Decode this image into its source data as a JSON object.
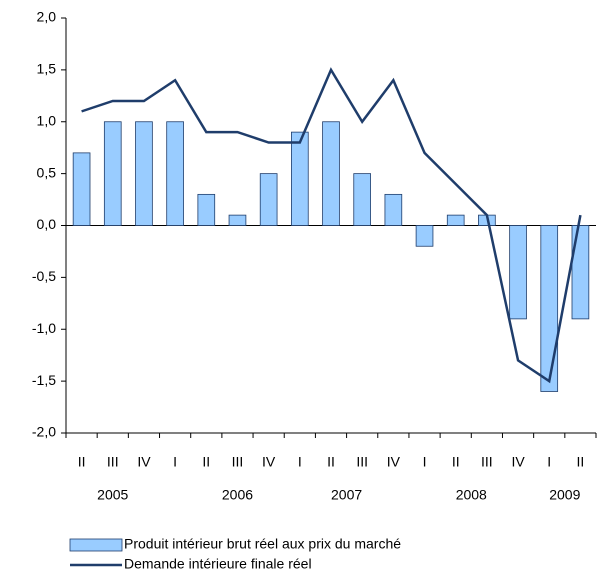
{
  "chart_data": {
    "type": "bar_line",
    "categories": [
      "II",
      "III",
      "IV",
      "I",
      "II",
      "III",
      "IV",
      "I",
      "II",
      "III",
      "IV",
      "I",
      "II",
      "III",
      "IV",
      "I",
      "II"
    ],
    "years": [
      "2005",
      "2006",
      "2007",
      "2008",
      "2009"
    ],
    "series": [
      {
        "name": "Produit intérieur brut réel aux prix du marché",
        "type": "bar",
        "color": "#99ccff",
        "values": [
          0.7,
          1.0,
          1.0,
          1.0,
          0.3,
          0.1,
          0.5,
          0.9,
          1.0,
          0.5,
          0.3,
          -0.2,
          0.1,
          0.1,
          -0.9,
          -1.6,
          -0.9
        ]
      },
      {
        "name": "Demande intérieure finale réel",
        "type": "line",
        "color": "#1f3d6b",
        "values": [
          1.1,
          1.2,
          1.2,
          1.4,
          0.9,
          0.9,
          0.8,
          0.8,
          1.5,
          1.0,
          1.4,
          0.7,
          0.4,
          0.1,
          -1.3,
          -1.5,
          0.1
        ]
      }
    ],
    "ylim": [
      -2.0,
      2.0
    ],
    "yticks": [
      {
        "value": -2.0,
        "label": "-2,0"
      },
      {
        "value": -1.5,
        "label": "-1,5"
      },
      {
        "value": -1.0,
        "label": "-1,0"
      },
      {
        "value": -0.5,
        "label": "-0,5"
      },
      {
        "value": 0.0,
        "label": "0,0"
      },
      {
        "value": 0.5,
        "label": "0,5"
      },
      {
        "value": 1.0,
        "label": "1,0"
      },
      {
        "value": 1.5,
        "label": "1,5"
      },
      {
        "value": 2.0,
        "label": "2,0"
      }
    ],
    "grid": false
  }
}
